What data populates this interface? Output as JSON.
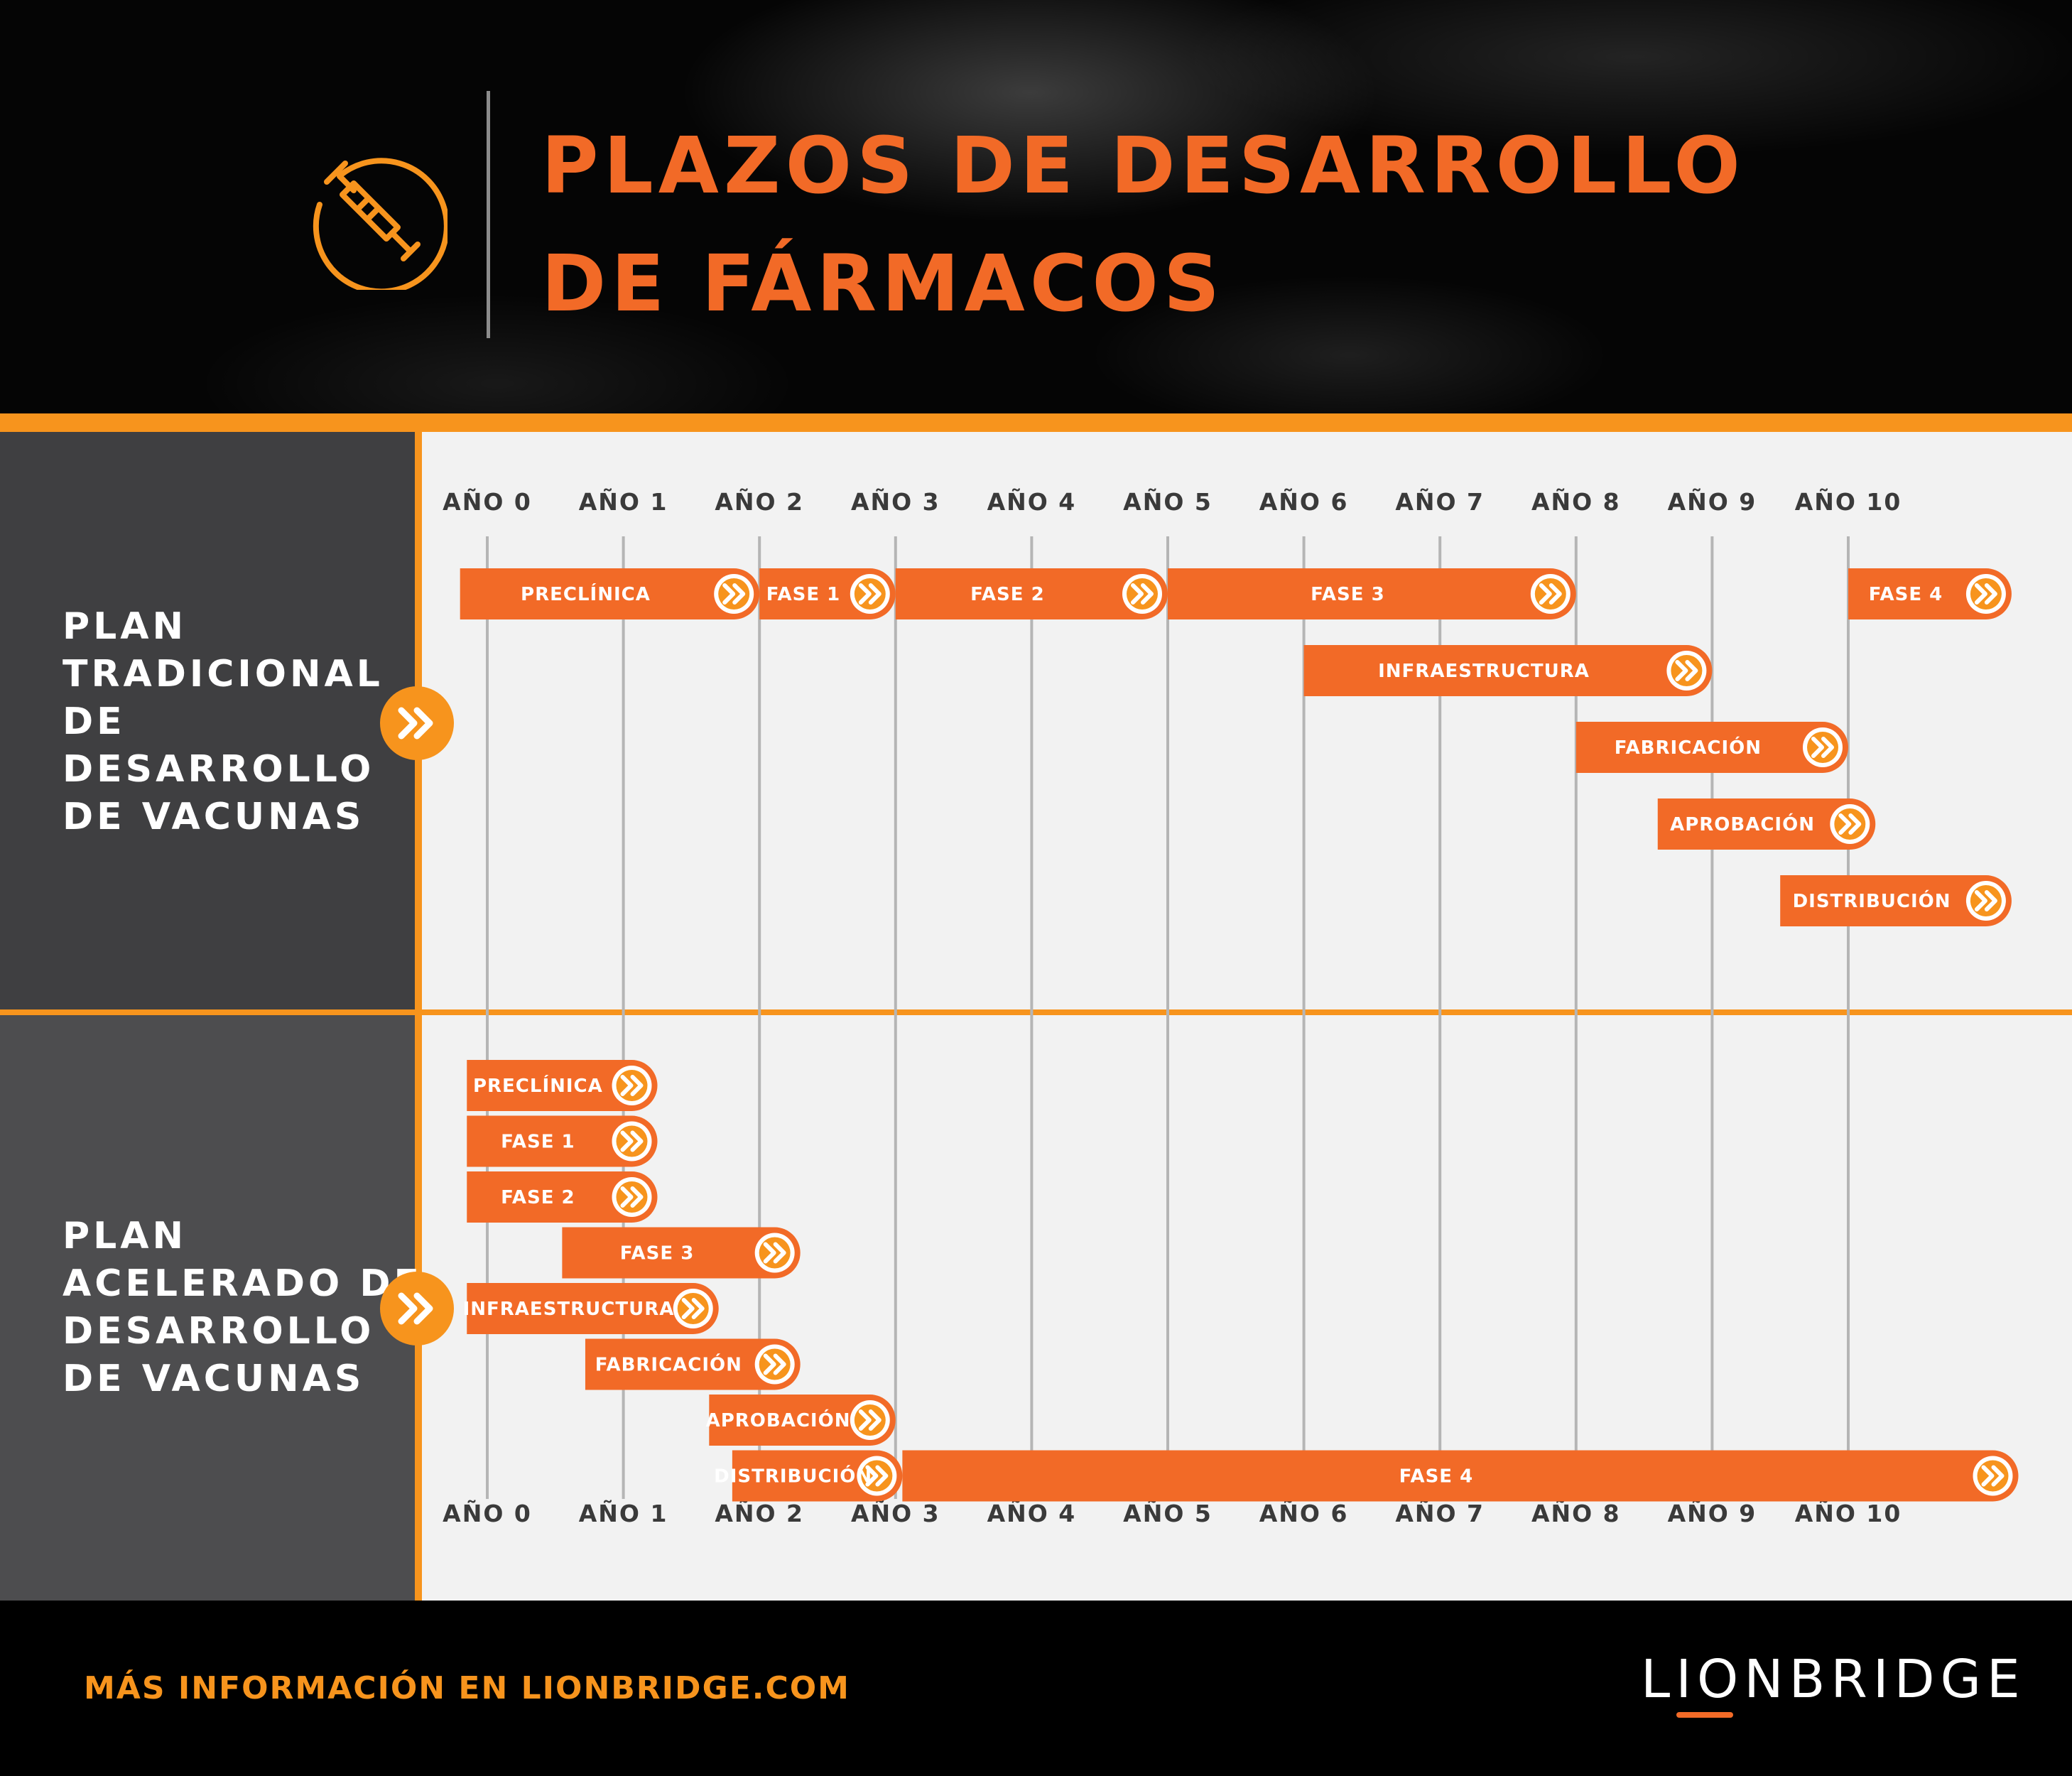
{
  "header": {
    "title_line1": "PLAZOS DE DESARROLLO",
    "title_line2": "DE FÁRMACOS",
    "logo_icon": "syringe-icon"
  },
  "sidebar": {
    "plan1": [
      "PLAN",
      "TRADICIONAL",
      "DE",
      "DESARROLLO",
      "DE VACUNAS"
    ],
    "plan2": [
      "PLAN",
      "ACELERADO DE",
      "DESARROLLO",
      "DE VACUNAS"
    ],
    "plan_icon": "double-chevron-right-icon"
  },
  "footer": {
    "link_text": "MÁS INFORMACIÓN EN LIONBRIDGE.COM",
    "brand": "LIONBRIDGE"
  },
  "colors": {
    "accent_orange": "#f26a27",
    "band_orange": "#f7941d",
    "panel_dark": "#3f3f41",
    "panel_mid": "#4d4d4f",
    "chart_bg": "#f2f2f2",
    "gridline": "#b5b5b5"
  },
  "chart_data": {
    "type": "gantt",
    "x_unit": "years",
    "x": [
      0,
      1,
      2,
      3,
      4,
      5,
      6,
      7,
      8,
      9,
      10
    ],
    "tick_labels": [
      "AÑO 0",
      "AÑO 1",
      "AÑO 2",
      "AÑO 3",
      "AÑO 4",
      "AÑO 5",
      "AÑO 6",
      "AÑO 7",
      "AÑO 8",
      "AÑO 9",
      "AÑO 10"
    ],
    "xlim": [
      0,
      10
    ],
    "grid": true,
    "series": [
      {
        "name": "PLAN TRADICIONAL DE DESARROLLO DE VACUNAS",
        "tasks": [
          {
            "label": "PRECLÍNICA",
            "start": -0.2,
            "end": 2.0,
            "row": 0
          },
          {
            "label": "FASE 1",
            "start": 2.0,
            "end": 3.0,
            "row": 0
          },
          {
            "label": "FASE 2",
            "start": 3.0,
            "end": 5.0,
            "row": 0
          },
          {
            "label": "FASE 3",
            "start": 5.0,
            "end": 8.0,
            "row": 0
          },
          {
            "label": "FASE 4",
            "start": 10.0,
            "end": 11.2,
            "row": 0
          },
          {
            "label": "INFRAESTRUCTURA",
            "start": 6.0,
            "end": 9.0,
            "row": 1
          },
          {
            "label": "FABRICACIÓN",
            "start": 8.0,
            "end": 10.0,
            "row": 2
          },
          {
            "label": "APROBACIÓN",
            "start": 8.6,
            "end": 10.2,
            "row": 3
          },
          {
            "label": "DISTRIBUCIÓN",
            "start": 9.5,
            "end": 11.2,
            "row": 4
          }
        ]
      },
      {
        "name": "PLAN ACELERADO DE DESARROLLO DE VACUNAS",
        "tasks": [
          {
            "label": "PRECLÍNICA",
            "start": -0.15,
            "end": 1.25,
            "row": 0
          },
          {
            "label": "FASE 1",
            "start": -0.15,
            "end": 1.25,
            "row": 1
          },
          {
            "label": "FASE 2",
            "start": -0.15,
            "end": 1.25,
            "row": 2
          },
          {
            "label": "FASE 3",
            "start": 0.55,
            "end": 2.3,
            "row": 3
          },
          {
            "label": "INFRAESTRUCTURA",
            "start": -0.15,
            "end": 1.7,
            "row": 4
          },
          {
            "label": "FABRICACIÓN",
            "start": 0.72,
            "end": 2.3,
            "row": 5
          },
          {
            "label": "APROBACIÓN",
            "start": 1.63,
            "end": 3.0,
            "row": 6
          },
          {
            "label": "DISTRIBUCIÓN",
            "start": 1.8,
            "end": 3.05,
            "row": 7
          },
          {
            "label": "FASE 4",
            "start": 3.05,
            "end": 11.25,
            "row": 7
          }
        ]
      }
    ]
  }
}
